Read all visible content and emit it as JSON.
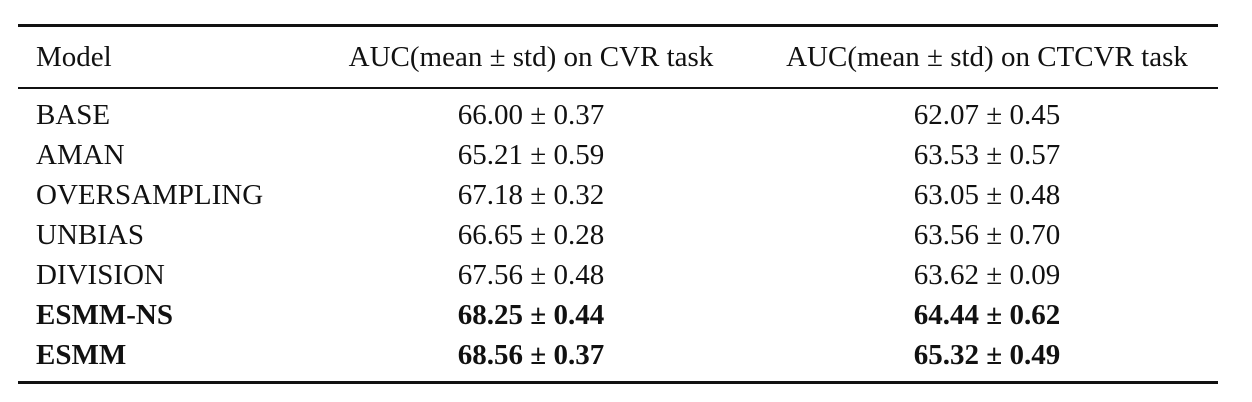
{
  "table": {
    "header": [
      "Model",
      "AUC(mean ± std) on CVR task",
      "AUC(mean ± std) on CTCVR task"
    ],
    "rows": [
      [
        "BASE",
        "66.00 ± 0.37",
        "62.07 ± 0.45"
      ],
      [
        "AMAN",
        "65.21 ± 0.59",
        "63.53 ± 0.57"
      ],
      [
        "OVERSAMPLING",
        "67.18 ± 0.32",
        "63.05 ± 0.48"
      ],
      [
        "UNBIAS",
        "66.65 ± 0.28",
        "63.56 ± 0.70"
      ],
      [
        "DIVISION",
        "67.56 ± 0.48",
        "63.62 ± 0.09"
      ],
      [
        "ESMM-NS",
        "68.25 ± 0.44",
        "64.44 ± 0.62"
      ],
      [
        "ESMM",
        "68.56 ± 0.37",
        "65.32 ± 0.49"
      ]
    ],
    "bold_rows": [
      5,
      6
    ]
  }
}
